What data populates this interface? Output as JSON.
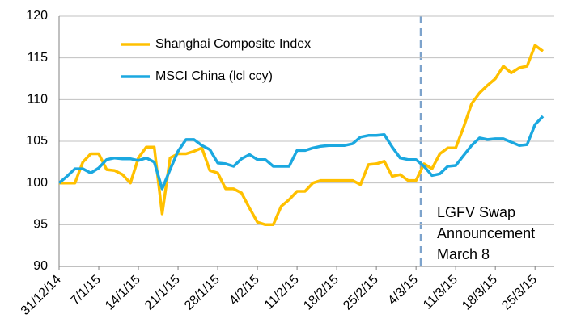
{
  "chart_data": {
    "type": "line",
    "categories": [
      "31/12/14",
      null,
      null,
      null,
      null,
      "7/1/15",
      null,
      null,
      null,
      null,
      "14/1/15",
      null,
      null,
      null,
      null,
      "21/1/15",
      null,
      null,
      null,
      null,
      "28/1/15",
      null,
      null,
      null,
      null,
      "4/2/15",
      null,
      null,
      null,
      null,
      "11/2/15",
      null,
      null,
      null,
      null,
      "18/2/15",
      null,
      null,
      null,
      null,
      "25/2/15",
      null,
      null,
      null,
      null,
      "4/3/15",
      null,
      null,
      null,
      null,
      "11/3/15",
      null,
      null,
      null,
      null,
      "18/3/15",
      null,
      null,
      null,
      null,
      "25/3/15",
      null
    ],
    "series": [
      {
        "name": "Shanghai Composite Index",
        "color": "#ffc000",
        "values": [
          100,
          100,
          100,
          102.5,
          103.5,
          103.5,
          101.6,
          101.5,
          101,
          100,
          103,
          104.3,
          104.3,
          96.3,
          103,
          103.5,
          103.5,
          103.8,
          104.2,
          101.5,
          101.2,
          99.3,
          99.3,
          98.8,
          97,
          95.3,
          95,
          95,
          97.2,
          98,
          99,
          99,
          100,
          100.3,
          100.3,
          100.3,
          100.3,
          100.3,
          99.8,
          102.2,
          102.3,
          102.6,
          100.8,
          101,
          100.3,
          100.3,
          102.3,
          101.7,
          103.5,
          104.2,
          104.2,
          106.7,
          109.5,
          110.8,
          111.7,
          112.5,
          114,
          113.2,
          113.8,
          114,
          116.5,
          115.8
        ]
      },
      {
        "name": "MSCI China (lcl ccy)",
        "color": "#1ba8e0",
        "values": [
          100,
          100.8,
          101.7,
          101.7,
          101.2,
          101.8,
          102.8,
          103,
          102.9,
          102.9,
          102.7,
          103,
          102.5,
          99.3,
          101.6,
          103.8,
          105.2,
          105.2,
          104.5,
          104,
          102.4,
          102.3,
          102,
          102.9,
          103.4,
          102.8,
          102.8,
          102,
          102,
          102,
          103.9,
          103.9,
          104.2,
          104.4,
          104.5,
          104.5,
          104.5,
          104.7,
          105.5,
          105.7,
          105.7,
          105.8,
          104.3,
          103,
          102.8,
          102.8,
          102,
          100.9,
          101.1,
          102,
          102.1,
          103.3,
          104.5,
          105.4,
          105.2,
          105.3,
          105.3,
          104.9,
          104.5,
          104.6,
          107,
          108
        ]
      }
    ],
    "ylim": [
      90,
      120
    ],
    "yticks": [
      90,
      95,
      100,
      105,
      110,
      115,
      120
    ],
    "grid": true,
    "annotation": [
      "LGFV Swap",
      "Announcement",
      "March 8"
    ]
  }
}
